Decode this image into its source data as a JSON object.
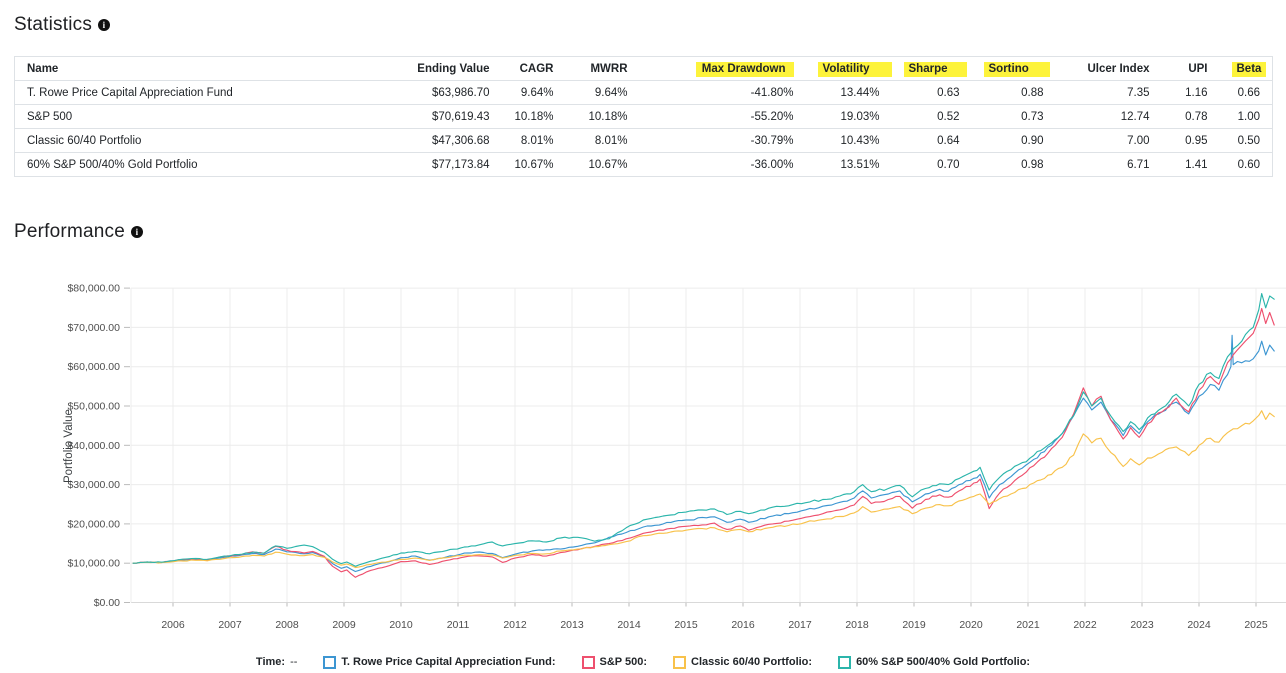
{
  "statistics": {
    "title": "Statistics",
    "columns": [
      {
        "label": "Name",
        "highlight": false
      },
      {
        "label": "Ending Value",
        "highlight": false
      },
      {
        "label": "CAGR",
        "highlight": false
      },
      {
        "label": "MWRR",
        "highlight": false
      },
      {
        "label": "Max Drawdown",
        "highlight": true
      },
      {
        "label": "Volatility",
        "highlight": true
      },
      {
        "label": "Sharpe",
        "highlight": true
      },
      {
        "label": "Sortino",
        "highlight": true
      },
      {
        "label": "Ulcer Index",
        "highlight": false
      },
      {
        "label": "UPI",
        "highlight": false
      },
      {
        "label": "Beta",
        "highlight": true
      }
    ],
    "rows": [
      [
        "T. Rowe Price Capital Appreciation Fund",
        "$63,986.70",
        "9.64%",
        "9.64%",
        "-41.80%",
        "13.44%",
        "0.63",
        "0.88",
        "7.35",
        "1.16",
        "0.66"
      ],
      [
        "S&P 500",
        "$70,619.43",
        "10.18%",
        "10.18%",
        "-55.20%",
        "19.03%",
        "0.52",
        "0.73",
        "12.74",
        "0.78",
        "1.00"
      ],
      [
        "Classic 60/40 Portfolio",
        "$47,306.68",
        "8.01%",
        "8.01%",
        "-30.79%",
        "10.43%",
        "0.64",
        "0.90",
        "7.00",
        "0.95",
        "0.50"
      ],
      [
        "60% S&P 500/40% Gold Portfolio",
        "$77,173.84",
        "10.67%",
        "10.67%",
        "-36.00%",
        "13.51%",
        "0.70",
        "0.98",
        "6.71",
        "1.41",
        "0.60"
      ]
    ]
  },
  "performance": {
    "title": "Performance"
  },
  "chart_data": {
    "type": "line",
    "title": "",
    "xlabel": "",
    "ylabel": "Portfolio Value",
    "ylim": [
      0,
      84000
    ],
    "xlim": [
      2005.25,
      2025.45
    ],
    "grid": true,
    "legend_position": "bottom",
    "legend_time_label": "Time:",
    "legend_time_value": "--",
    "x_ticks": [
      2006,
      2007,
      2008,
      2009,
      2010,
      2011,
      2012,
      2013,
      2014,
      2015,
      2016,
      2017,
      2018,
      2019,
      2020,
      2021,
      2022,
      2023,
      2024,
      2025
    ],
    "y_ticks": [
      0,
      10000,
      20000,
      30000,
      40000,
      50000,
      60000,
      70000,
      80000
    ],
    "y_tick_labels": [
      "$0.00",
      "$10,000.00",
      "$20,000.00",
      "$30,000.00",
      "$40,000.00",
      "$50,000.00",
      "$60,000.00",
      "$70,000.00",
      "$80,000.00"
    ],
    "x": [
      2005.3,
      2005.55,
      2005.8,
      2006.1,
      2006.4,
      2006.6,
      2006.9,
      2007.15,
      2007.4,
      2007.6,
      2007.8,
      2008.0,
      2008.3,
      2008.45,
      2008.65,
      2008.8,
      2008.95,
      2009.05,
      2009.2,
      2009.4,
      2009.6,
      2009.8,
      2010.0,
      2010.25,
      2010.5,
      2010.8,
      2011.05,
      2011.3,
      2011.6,
      2011.78,
      2012.0,
      2012.3,
      2012.55,
      2012.8,
      2013.1,
      2013.4,
      2013.65,
      2013.95,
      2014.25,
      2014.6,
      2015.0,
      2015.5,
      2015.72,
      2015.95,
      2016.1,
      2016.45,
      2016.8,
      2017.1,
      2017.4,
      2017.7,
      2017.95,
      2018.1,
      2018.25,
      2018.55,
      2018.75,
      2018.97,
      2019.2,
      2019.45,
      2019.6,
      2019.85,
      2020.05,
      2020.16,
      2020.32,
      2020.5,
      2020.7,
      2020.9,
      2021.1,
      2021.35,
      2021.6,
      2021.8,
      2021.97,
      2022.12,
      2022.28,
      2022.45,
      2022.67,
      2022.8,
      2022.95,
      2023.1,
      2023.35,
      2023.6,
      2023.82,
      2024.0,
      2024.2,
      2024.35,
      2024.5,
      2024.56,
      2024.58,
      2024.6,
      2024.75,
      2024.95,
      2025.05,
      2025.1,
      2025.17,
      2025.24,
      2025.32
    ],
    "series": [
      {
        "name": "T. Rowe Price Capital Appreciation Fund",
        "legend_label": "T. Rowe Price Capital Appreciation Fund:",
        "color": "#3D96D2",
        "values": [
          10000,
          10250,
          10200,
          10800,
          11000,
          10800,
          11500,
          11900,
          12500,
          12200,
          13600,
          12900,
          12400,
          12700,
          11700,
          9900,
          8700,
          9100,
          7900,
          9000,
          9800,
          10400,
          11400,
          11800,
          10800,
          11600,
          12300,
          12800,
          12500,
          11400,
          12300,
          13100,
          13400,
          13600,
          14300,
          15200,
          16600,
          17800,
          19200,
          20000,
          21000,
          21800,
          20400,
          21200,
          20400,
          21800,
          22600,
          23600,
          24500,
          25500,
          26600,
          28400,
          26600,
          27600,
          28400,
          25600,
          27600,
          28800,
          28300,
          30200,
          31600,
          32600,
          26600,
          30000,
          32000,
          34200,
          36400,
          39500,
          43000,
          47500,
          52000,
          49000,
          51000,
          46500,
          42500,
          45000,
          43000,
          46000,
          48500,
          51000,
          48000,
          52500,
          55500,
          54000,
          58000,
          60000,
          68000,
          60500,
          61000,
          62000,
          64000,
          66500,
          63000,
          65500,
          63987
        ]
      },
      {
        "name": "S&P 500",
        "legend_label": "S&P 500:",
        "color": "#EE506E",
        "values": [
          10000,
          10300,
          10150,
          10900,
          11150,
          10850,
          11700,
          12100,
          12900,
          12500,
          14300,
          13300,
          12600,
          13000,
          11800,
          9200,
          7800,
          8300,
          6400,
          7800,
          8700,
          9400,
          10400,
          10600,
          9700,
          10700,
          11400,
          11900,
          11600,
          10200,
          11300,
          12200,
          11800,
          12700,
          13400,
          14300,
          15000,
          16200,
          17600,
          18400,
          19400,
          20200,
          18600,
          19500,
          18400,
          19900,
          20700,
          21700,
          22600,
          23600,
          24800,
          27000,
          25200,
          26200,
          27000,
          24000,
          26200,
          27400,
          26800,
          28800,
          30400,
          31400,
          23900,
          27800,
          30000,
          32400,
          34800,
          38000,
          42000,
          48000,
          54600,
          50000,
          52500,
          46500,
          41600,
          44500,
          42000,
          45500,
          48500,
          52000,
          48500,
          54000,
          57500,
          55500,
          61000,
          62000,
          62500,
          63000,
          65500,
          68500,
          72000,
          74800,
          71000,
          73800,
          70619
        ]
      },
      {
        "name": "Classic 60/40 Portfolio",
        "legend_label": "Classic 60/40 Portfolio:",
        "color": "#F8C24B",
        "values": [
          10000,
          10200,
          10150,
          10600,
          10750,
          10600,
          11200,
          11500,
          12000,
          11800,
          12800,
          12300,
          11900,
          12200,
          11500,
          10300,
          9500,
          9800,
          8900,
          9600,
          10100,
          10500,
          11000,
          11300,
          10700,
          11400,
          11900,
          12100,
          12100,
          11300,
          12000,
          12500,
          12400,
          13100,
          13600,
          14200,
          14700,
          15500,
          17000,
          17600,
          18400,
          19000,
          18000,
          18600,
          18000,
          19000,
          19600,
          20400,
          21100,
          21900,
          22800,
          24400,
          23000,
          23800,
          24400,
          22600,
          24000,
          24900,
          24600,
          26000,
          27000,
          27600,
          25000,
          26400,
          27600,
          29000,
          30400,
          32400,
          34400,
          37500,
          42900,
          40600,
          41800,
          38200,
          34600,
          36600,
          35000,
          36800,
          38200,
          39600,
          37400,
          40000,
          41800,
          40800,
          43200,
          43800,
          44000,
          44200,
          45000,
          46200,
          47600,
          48800,
          46600,
          48200,
          47307
        ]
      },
      {
        "name": "60% S&P 500/40% Gold Portfolio",
        "legend_label": "60% S&P 500/40% Gold Portfolio:",
        "color": "#2BB5AB",
        "values": [
          10000,
          10300,
          10250,
          10900,
          11200,
          11000,
          11800,
          12200,
          12800,
          12600,
          14400,
          13800,
          14600,
          14200,
          12800,
          11000,
          9900,
          10300,
          9200,
          10200,
          11000,
          11700,
          12600,
          13000,
          12400,
          13200,
          13900,
          14400,
          15400,
          14400,
          15000,
          15700,
          15400,
          16400,
          16600,
          15600,
          16200,
          19000,
          21000,
          22000,
          23000,
          23800,
          22400,
          23200,
          22600,
          24000,
          24600,
          25400,
          26200,
          27100,
          28200,
          30000,
          28200,
          29000,
          29800,
          26900,
          29000,
          30200,
          30000,
          32000,
          33400,
          34400,
          28600,
          31800,
          33800,
          35600,
          37400,
          40000,
          43000,
          47500,
          53600,
          50000,
          52000,
          47500,
          43500,
          46000,
          44000,
          47000,
          49500,
          53000,
          50000,
          55500,
          58500,
          57000,
          62500,
          63500,
          64000,
          64500,
          66500,
          70000,
          74500,
          78600,
          75000,
          78000,
          77173
        ]
      }
    ]
  }
}
